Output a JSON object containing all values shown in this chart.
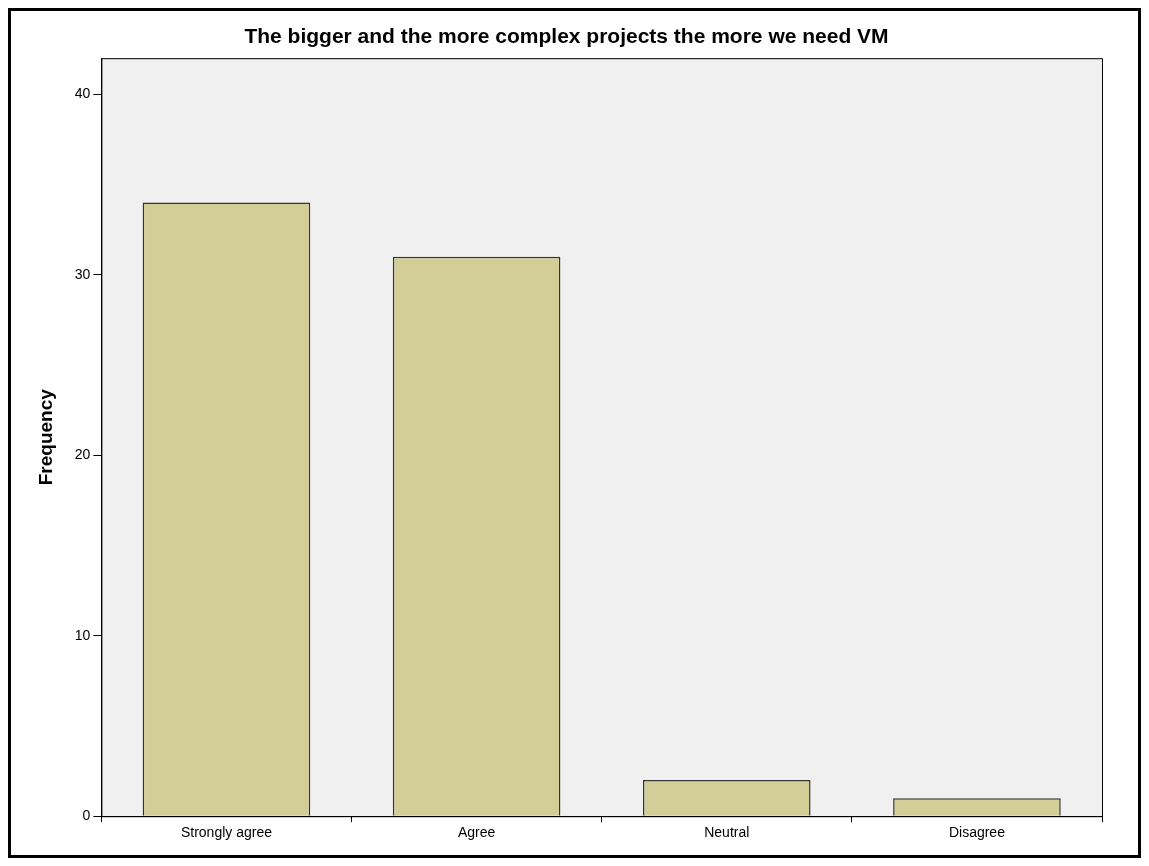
{
  "chart_data": {
    "type": "bar",
    "title": "The bigger and the more complex projects the more we need VM",
    "ylabel": "Frequency",
    "categories": [
      "Strongly agree",
      "Agree",
      "Neutral",
      "Disagree"
    ],
    "values": [
      34,
      31,
      2,
      1
    ],
    "color": "#d3ce97",
    "ylim": [
      0,
      42
    ],
    "yticks": [
      0,
      10,
      20,
      30,
      40
    ],
    "grid": false,
    "legend": false
  }
}
